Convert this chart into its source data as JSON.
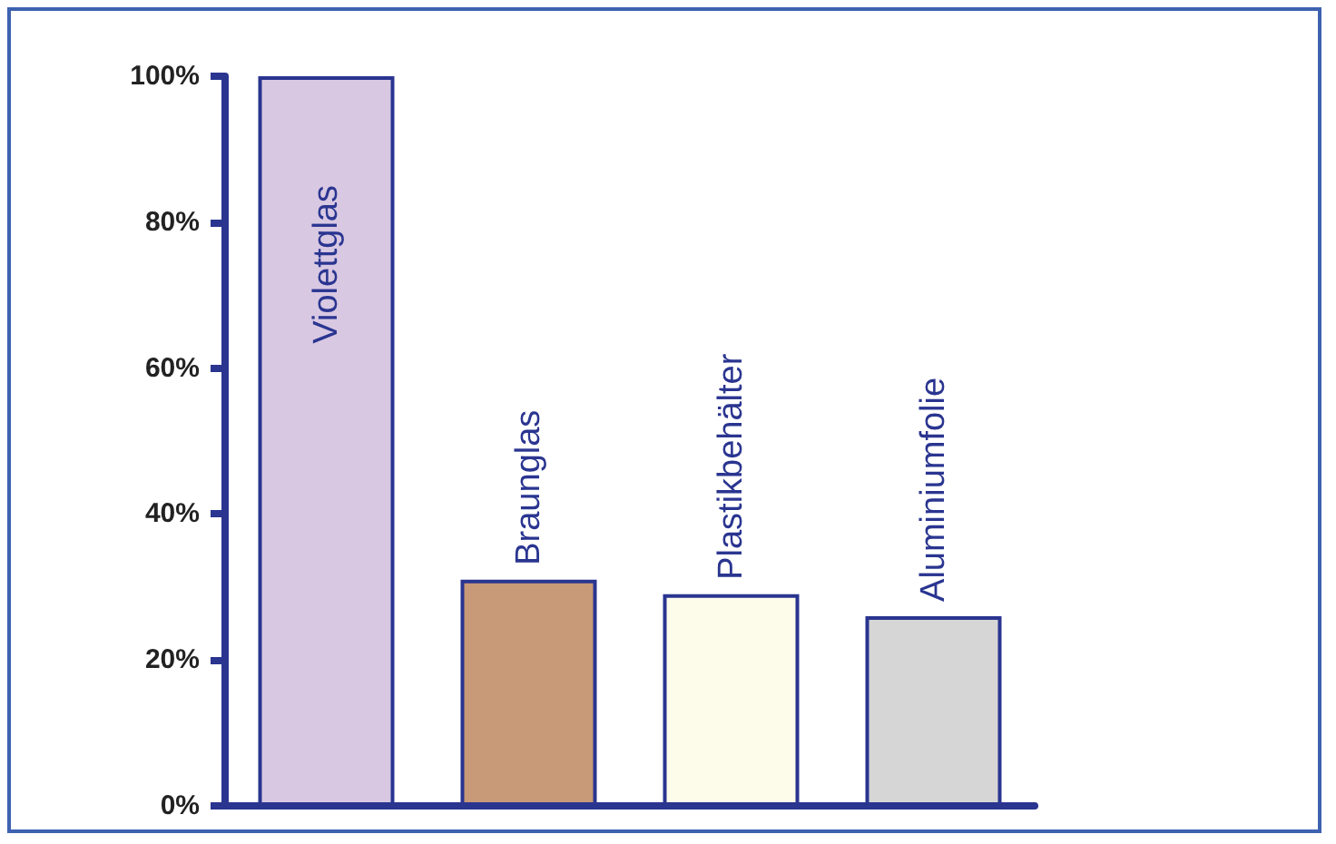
{
  "chart_data": {
    "type": "bar",
    "categories": [
      "Violettglas",
      "Braunglas",
      "Plastikbehälter",
      "Aluminiumfolie"
    ],
    "values": [
      100,
      31,
      29,
      26
    ],
    "colors": [
      "#d8c8e2",
      "#c99a78",
      "#fdfbea",
      "#d6d6d6"
    ],
    "ylim": [
      0,
      100
    ],
    "yticks": [
      {
        "value": 0,
        "label": "0%"
      },
      {
        "value": 20,
        "label": "20%"
      },
      {
        "value": 40,
        "label": "40%"
      },
      {
        "value": 60,
        "label": "60%"
      },
      {
        "value": 80,
        "label": "80%"
      },
      {
        "value": 100,
        "label": "100%"
      }
    ],
    "grid": false
  }
}
